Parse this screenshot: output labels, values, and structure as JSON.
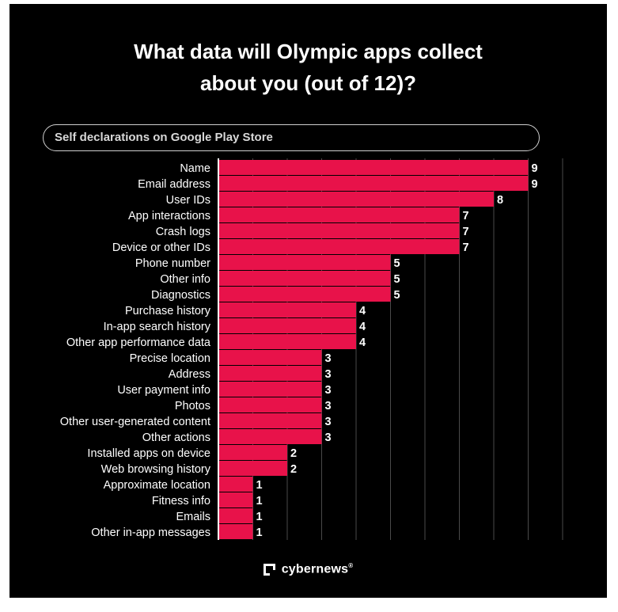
{
  "chart_data": {
    "type": "bar",
    "orientation": "horizontal",
    "title_lines": [
      "What data will Olympic apps collect",
      "about you (out of 12)?"
    ],
    "subtitle": "Self declarations on Google Play Store",
    "xlim": [
      0,
      10
    ],
    "grid": true,
    "bar_color": "#e8124a",
    "background": "#000000",
    "categories": [
      "Name",
      "Email address",
      "User IDs",
      "App interactions",
      "Crash logs",
      "Device or other IDs",
      "Phone number",
      "Other info",
      "Diagnostics",
      "Purchase history",
      "In-app search history",
      "Other app performance data",
      "Precise location",
      "Address",
      "User payment info",
      "Photos",
      "Other user-generated content",
      "Other actions",
      "Installed apps on device",
      "Web browsing history",
      "Approximate location",
      "Fitness info",
      "Emails",
      "Other in-app messages"
    ],
    "values": [
      9,
      9,
      8,
      7,
      7,
      7,
      5,
      5,
      5,
      4,
      4,
      4,
      3,
      3,
      3,
      3,
      3,
      3,
      2,
      2,
      1,
      1,
      1,
      1
    ]
  },
  "footer": {
    "brand": "cybernews",
    "registered_mark": "®",
    "logo_icon": "cybernews-logo-icon"
  }
}
